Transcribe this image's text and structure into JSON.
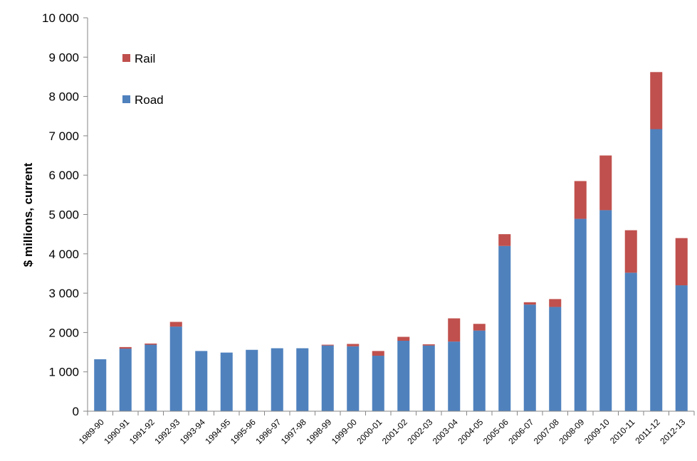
{
  "chart_data": {
    "type": "bar",
    "stacked": true,
    "ylabel": "$ millions, current",
    "xlabel": "",
    "ylim": [
      0,
      10000
    ],
    "ytick_step": 1000,
    "ytick_labels": [
      "0",
      "1 000",
      "2 000",
      "3 000",
      "4 000",
      "5 000",
      "6 000",
      "7 000",
      "8 000",
      "9 000",
      "10 000"
    ],
    "grid": false,
    "legend_position": "top-left",
    "categories": [
      "1989-90",
      "1990-91",
      "1991-92",
      "1992-93",
      "1993-94",
      "1994-95",
      "1995-96",
      "1996-97",
      "1997-98",
      "1998-99",
      "1999-00",
      "2000-01",
      "2001-02",
      "2002-03",
      "2003-04",
      "2004-05",
      "2005-06",
      "2006-07",
      "2007-08",
      "2008-09",
      "2009-10",
      "2010-11",
      "2011-12",
      "2012-13"
    ],
    "series": [
      {
        "name": "Road",
        "color": "#4f81bd",
        "values": [
          1320,
          1590,
          1690,
          2150,
          1530,
          1490,
          1560,
          1600,
          1600,
          1670,
          1650,
          1410,
          1790,
          1670,
          1770,
          2050,
          4200,
          2710,
          2650,
          4890,
          5110,
          3520,
          7170,
          3200
        ]
      },
      {
        "name": "Rail",
        "color": "#c0504d",
        "values": [
          0,
          40,
          30,
          120,
          0,
          0,
          0,
          0,
          0,
          20,
          60,
          120,
          100,
          30,
          590,
          170,
          300,
          60,
          200,
          960,
          1390,
          1080,
          1450,
          1200
        ]
      }
    ],
    "legend": [
      {
        "name": "Rail",
        "color": "#c0504d"
      },
      {
        "name": "Road",
        "color": "#4f81bd"
      }
    ]
  }
}
